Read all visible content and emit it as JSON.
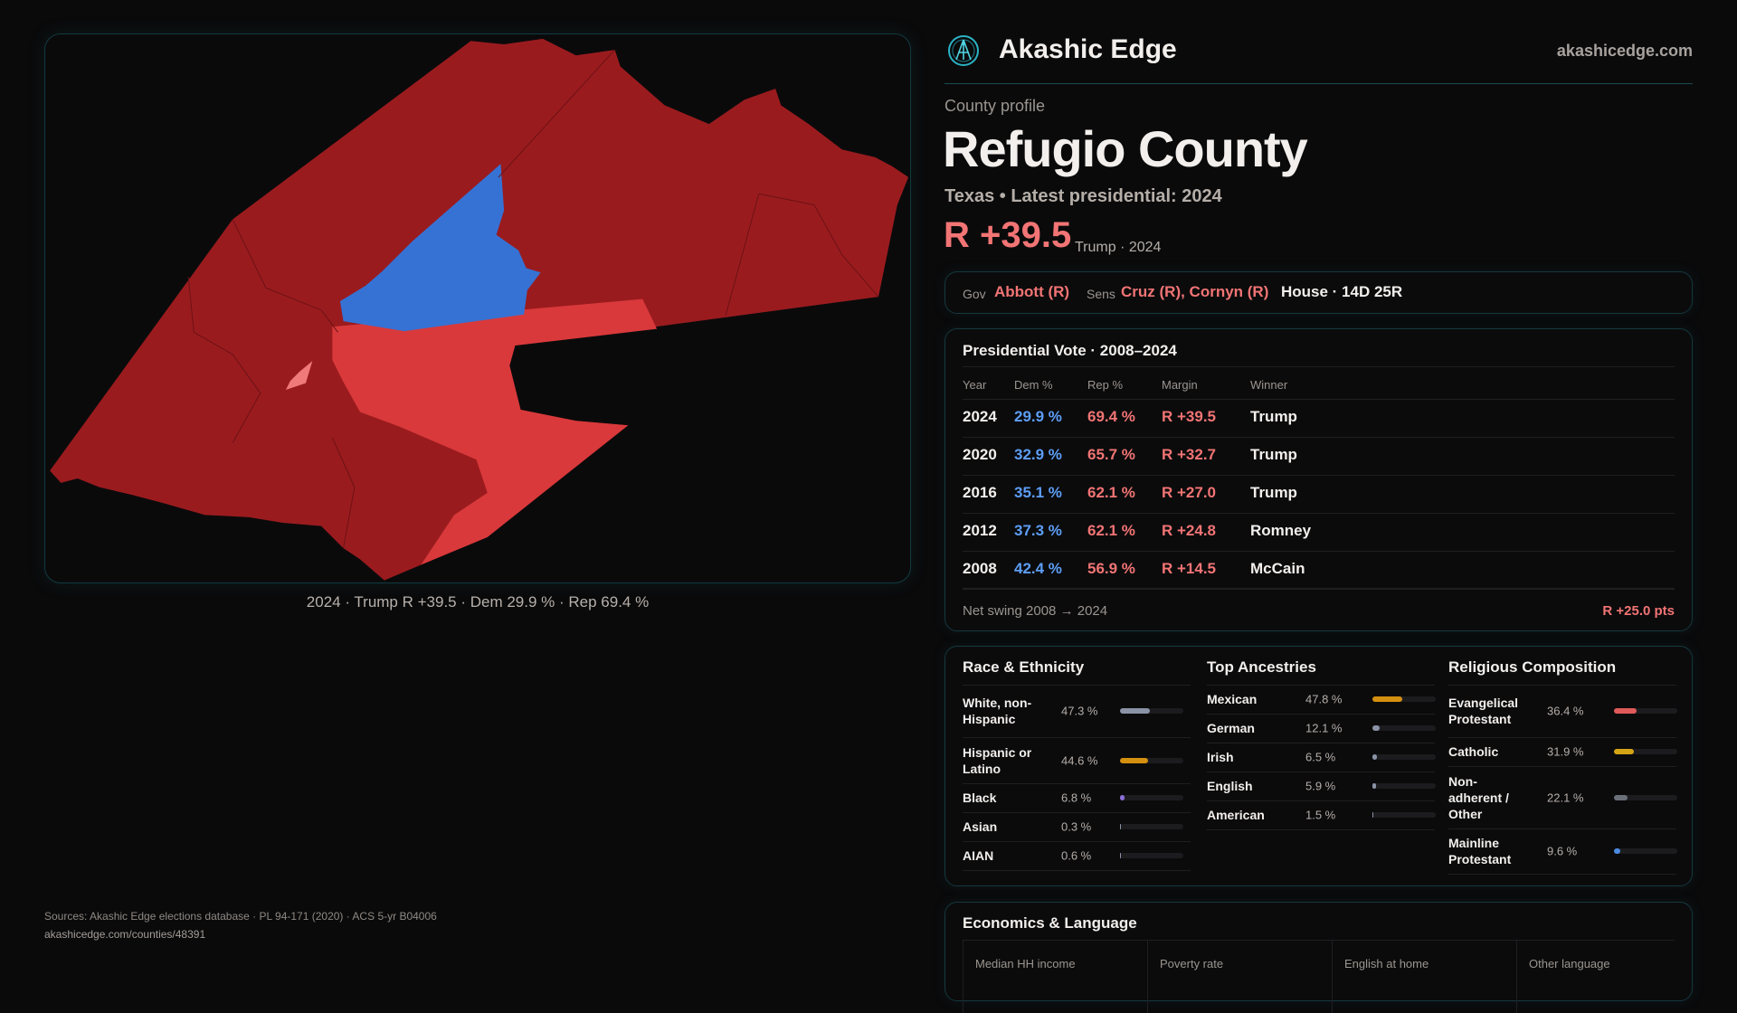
{
  "brand": {
    "name": "Akashic Edge",
    "site": "akashicedge.com",
    "logo_icon": "compass-logo-icon"
  },
  "profile": {
    "eyebrow": "County profile",
    "title": "Refugio County",
    "subtitle": "Texas • Latest presidential: 2024",
    "margin": "R +39.5",
    "margin_note": "Trump · 2024"
  },
  "officials": {
    "gov_label": "Gov",
    "gov_value": "Abbott (R)",
    "sens_label": "Sens",
    "sens_value": "Cruz (R), Cornyn (R)",
    "house": "House · 14D 25R"
  },
  "map": {
    "caption": "2024 · Trump R +39.5 · Dem 29.9 % · Rep 69.4 %",
    "colors": {
      "safe_r": "#9a1b1e",
      "lean_r": "#d9393b",
      "tilt_r": "#f07a7a",
      "dem": "#3672d4"
    }
  },
  "presidential": {
    "title": "Presidential Vote · 2008–2024",
    "headers": [
      "Year",
      "Dem %",
      "Rep %",
      "Margin",
      "Winner"
    ],
    "rows": [
      {
        "year": "2024",
        "dem": "29.9 %",
        "rep": "69.4 %",
        "margin": "R +39.5",
        "winner": "Trump"
      },
      {
        "year": "2020",
        "dem": "32.9 %",
        "rep": "65.7 %",
        "margin": "R +32.7",
        "winner": "Trump"
      },
      {
        "year": "2016",
        "dem": "35.1 %",
        "rep": "62.1 %",
        "margin": "R +27.0",
        "winner": "Trump"
      },
      {
        "year": "2012",
        "dem": "37.3 %",
        "rep": "62.1 %",
        "margin": "R +24.8",
        "winner": "Romney"
      },
      {
        "year": "2008",
        "dem": "42.4 %",
        "rep": "56.9 %",
        "margin": "R +14.5",
        "winner": "McCain"
      }
    ],
    "swing_label": "Net swing 2008 → 2024",
    "swing_value": "R +25.0 pts"
  },
  "demographics": [
    {
      "title": "Race & Ethnicity",
      "items": [
        {
          "label": "White, non-Hispanic",
          "value": "47.3 %",
          "pct": 47.3,
          "color": "#8a93a6",
          "lines": 2
        },
        {
          "label": "Hispanic or Latino",
          "value": "44.6 %",
          "pct": 44.6,
          "color": "#d4900f",
          "lines": 2
        },
        {
          "label": "Black",
          "value": "6.8 %",
          "pct": 6.8,
          "color": "#8b6fd6",
          "lines": 1
        },
        {
          "label": "Asian",
          "value": "0.3 %",
          "pct": 0.3,
          "color": "#8a93a6",
          "lines": 1
        },
        {
          "label": "AIAN",
          "value": "0.6 %",
          "pct": 0.6,
          "color": "#8a93a6",
          "lines": 1
        }
      ]
    },
    {
      "title": "Top Ancestries",
      "items": [
        {
          "label": "Mexican",
          "value": "47.8 %",
          "pct": 47.8,
          "color": "#d4900f",
          "lines": 1
        },
        {
          "label": "German",
          "value": "12.1 %",
          "pct": 12.1,
          "color": "#8a93a6",
          "lines": 1
        },
        {
          "label": "Irish",
          "value": "6.5 %",
          "pct": 6.5,
          "color": "#8a93a6",
          "lines": 1
        },
        {
          "label": "English",
          "value": "5.9 %",
          "pct": 5.9,
          "color": "#8a93a6",
          "lines": 1
        },
        {
          "label": "American",
          "value": "1.5 %",
          "pct": 1.5,
          "color": "#8a93a6",
          "lines": 1
        }
      ]
    },
    {
      "title": "Religious Composition",
      "items": [
        {
          "label": "Evangelical Protestant",
          "value": "36.4 %",
          "pct": 36.4,
          "color": "#e05a5a",
          "lines": 2
        },
        {
          "label": "Catholic",
          "value": "31.9 %",
          "pct": 31.9,
          "color": "#d4a514",
          "lines": 1
        },
        {
          "label": "Non-adherent / Other",
          "value": "22.1 %",
          "pct": 22.1,
          "color": "#6b6f78",
          "lines": 3
        },
        {
          "label": "Mainline Protestant",
          "value": "9.6 %",
          "pct": 9.6,
          "color": "#4a8be0",
          "lines": 2
        }
      ]
    }
  ],
  "economics": {
    "title": "Economics & Language",
    "columns": [
      "Median HH income",
      "Poverty rate",
      "English at home",
      "Other language"
    ]
  },
  "sources": {
    "text": "Sources: Akashic Edge elections database · PL 94-171 (2020) · ACS 5-yr B04006",
    "url": "akashicedge.com/counties/48391"
  }
}
